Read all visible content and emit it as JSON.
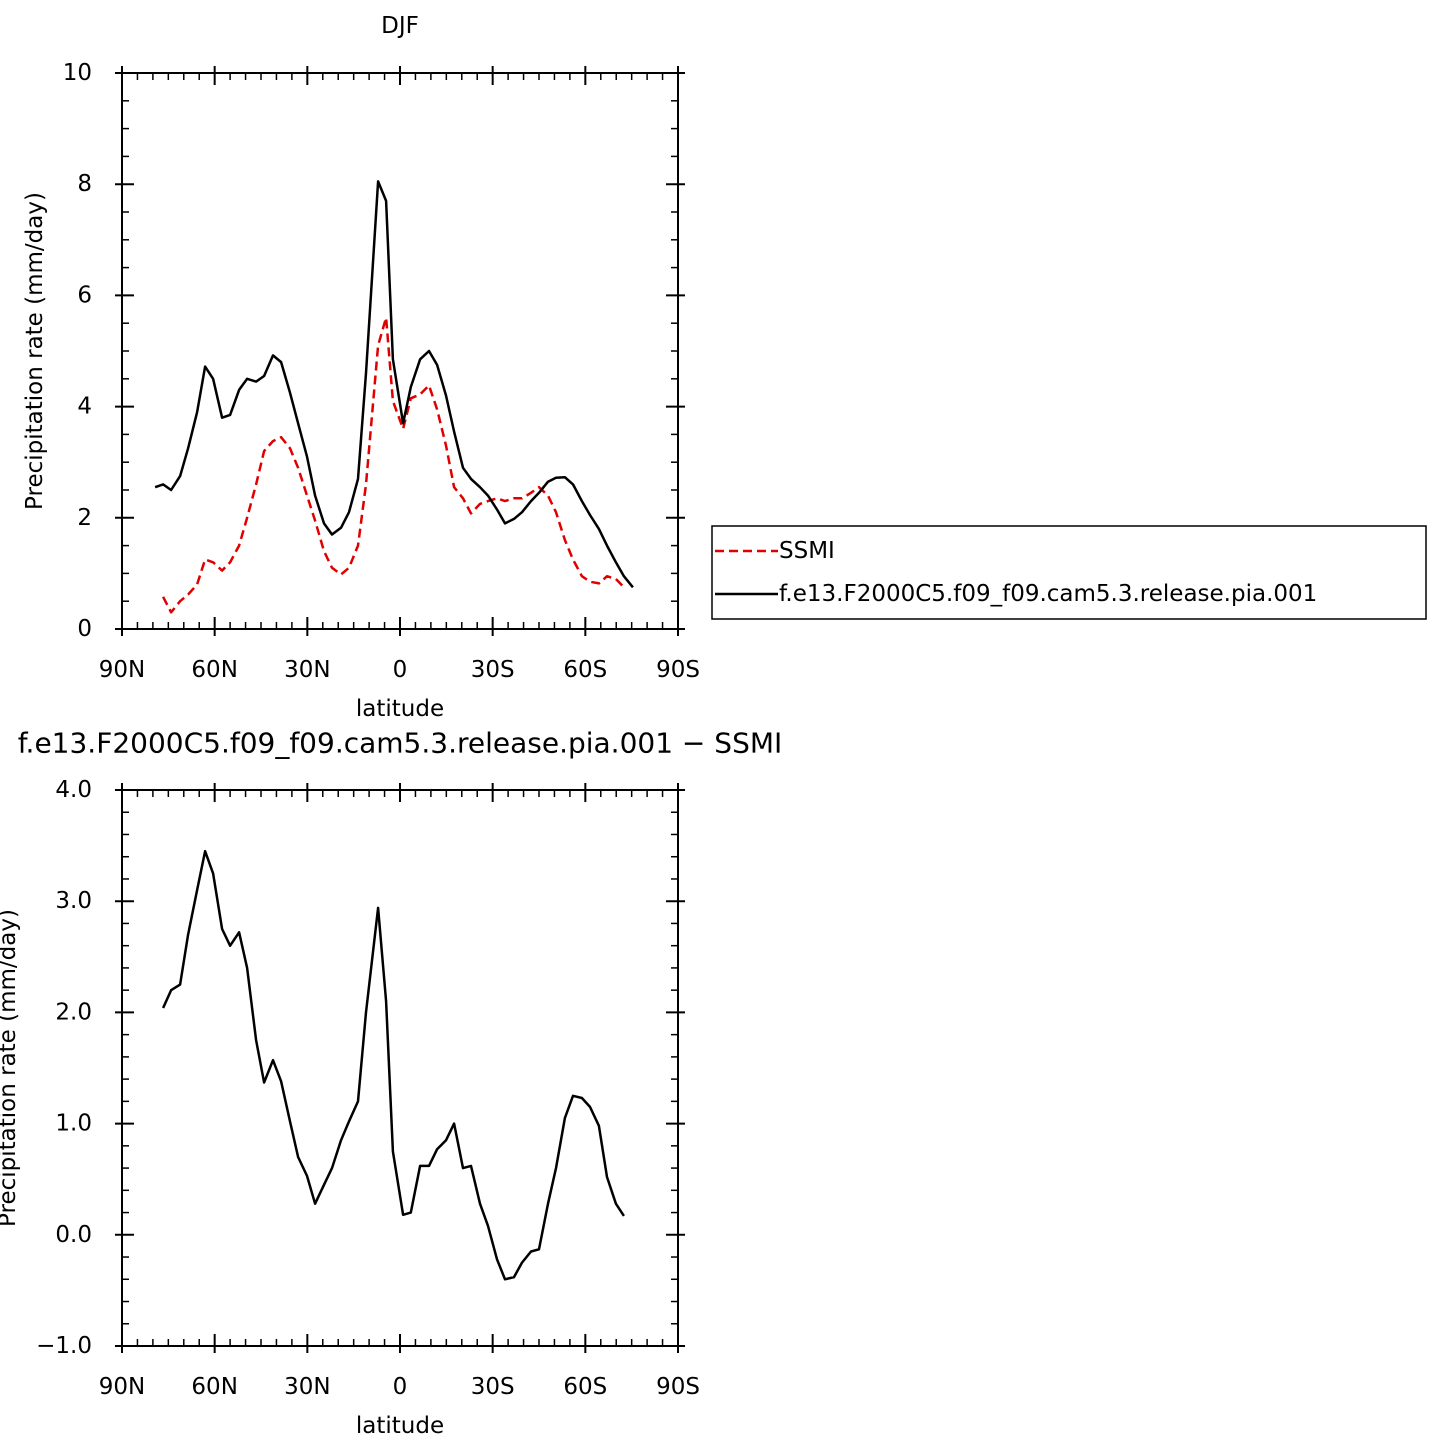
{
  "chart_data": [
    {
      "type": "line",
      "title": "DJF",
      "xlabel": "latitude",
      "ylabel": "Precipitation rate (mm/day)",
      "x": [
        79.3,
        76.7,
        74.1,
        71.2,
        68.6,
        65.7,
        63.1,
        60.5,
        57.6,
        55.0,
        52.1,
        49.5,
        46.6,
        44.0,
        41.1,
        38.5,
        35.6,
        33.0,
        30.1,
        27.5,
        24.6,
        22.0,
        19.1,
        16.5,
        13.6,
        11.0,
        7.1,
        4.5,
        2.3,
        -1.0,
        -3.5,
        -6.5,
        -9.4,
        -12.0,
        -14.9,
        -17.5,
        -20.4,
        -23.0,
        -25.9,
        -28.5,
        -31.4,
        -34.0,
        -36.9,
        -39.5,
        -42.4,
        -45.0,
        -47.9,
        -50.5,
        -53.4,
        -56.0,
        -58.9,
        -61.5,
        -64.4,
        -67.0,
        -69.9,
        -72.5,
        -75.4
      ],
      "series": [
        {
          "name": "SSMI",
          "color": "#e00000",
          "dashed": true,
          "values": [
            null,
            0.58,
            0.3,
            0.5,
            0.62,
            0.8,
            1.25,
            1.2,
            1.05,
            1.2,
            1.5,
            2.0,
            2.6,
            3.2,
            3.38,
            3.45,
            3.25,
            2.9,
            2.4,
            1.95,
            1.4,
            1.1,
            0.98,
            1.1,
            1.5,
            2.6,
            5.1,
            5.6,
            4.1,
            3.6,
            4.15,
            4.22,
            4.38,
            3.95,
            3.3,
            2.55,
            2.35,
            2.08,
            2.25,
            2.3,
            2.35,
            2.3,
            2.35,
            2.35,
            2.45,
            2.55,
            2.4,
            2.1,
            1.6,
            1.25,
            0.95,
            0.85,
            0.82,
            0.95,
            0.9,
            0.75,
            null
          ]
        },
        {
          "name": "f.e13.F2000C5.f09_f09.cam5.3.release.pia.001",
          "color": "#000000",
          "dashed": false,
          "values": [
            2.55,
            2.6,
            2.5,
            2.75,
            3.25,
            3.9,
            4.72,
            4.5,
            3.8,
            3.85,
            4.3,
            4.5,
            4.45,
            4.55,
            4.92,
            4.8,
            4.25,
            3.7,
            3.1,
            2.4,
            1.9,
            1.7,
            1.82,
            2.1,
            2.7,
            4.6,
            8.05,
            7.7,
            4.85,
            3.7,
            4.35,
            4.85,
            5.0,
            4.75,
            4.2,
            3.55,
            2.9,
            2.7,
            2.55,
            2.4,
            2.15,
            1.9,
            1.98,
            2.1,
            2.3,
            2.45,
            2.65,
            2.72,
            2.73,
            2.6,
            2.3,
            2.05,
            1.8,
            1.5,
            1.2,
            0.95,
            0.75
          ]
        }
      ],
      "xlim": [
        90,
        -90
      ],
      "xticks": [
        {
          "value": 90,
          "label": "90N"
        },
        {
          "value": 60,
          "label": "60N"
        },
        {
          "value": 30,
          "label": "30N"
        },
        0,
        {
          "value": -30,
          "label": "30S"
        },
        {
          "value": -60,
          "label": "60S"
        },
        {
          "value": -90,
          "label": "90S"
        }
      ],
      "ylim": [
        0,
        10
      ],
      "yticks": [
        0,
        2,
        4,
        6,
        8,
        10
      ],
      "legend": "right"
    },
    {
      "type": "line",
      "title": "f.e13.F2000C5.f09_f09.cam5.3.release.pia.001 − SSMI",
      "xlabel": "latitude",
      "ylabel": "Precipitation rate (mm/day)",
      "x": [
        79.3,
        76.7,
        74.1,
        71.2,
        68.6,
        65.7,
        63.1,
        60.5,
        57.6,
        55.0,
        52.1,
        49.5,
        46.6,
        44.0,
        41.1,
        38.5,
        35.6,
        33.0,
        30.1,
        27.5,
        24.6,
        22.0,
        19.1,
        16.5,
        13.6,
        11.0,
        7.1,
        4.5,
        2.3,
        -1.0,
        -3.5,
        -6.5,
        -9.4,
        -12.0,
        -14.9,
        -17.5,
        -20.4,
        -23.0,
        -25.9,
        -28.5,
        -31.4,
        -34.0,
        -36.9,
        -39.5,
        -42.4,
        -45.0,
        -47.9,
        -50.5,
        -53.4,
        -56.0,
        -58.9,
        -61.5,
        -64.4,
        -67.0,
        -69.9,
        -72.5,
        -75.4
      ],
      "values": [
        null,
        2.04,
        2.2,
        2.25,
        2.7,
        3.1,
        3.45,
        3.25,
        2.75,
        2.6,
        2.72,
        2.4,
        1.75,
        1.37,
        1.57,
        1.38,
        1.02,
        0.7,
        0.53,
        0.28,
        0.45,
        0.6,
        0.85,
        1.02,
        1.2,
        2.0,
        2.94,
        2.1,
        0.75,
        0.18,
        0.2,
        0.62,
        0.62,
        0.77,
        0.85,
        1.0,
        0.6,
        0.62,
        0.28,
        0.08,
        -0.22,
        -0.4,
        -0.38,
        -0.25,
        -0.15,
        -0.13,
        0.28,
        0.6,
        1.05,
        1.25,
        1.23,
        1.15,
        0.98,
        0.52,
        0.28,
        0.17,
        null
      ],
      "color": "#000000",
      "xlim": [
        90,
        -90
      ],
      "xticks": [
        {
          "value": 90,
          "label": "90N"
        },
        {
          "value": 60,
          "label": "60N"
        },
        {
          "value": 30,
          "label": "30N"
        },
        0,
        {
          "value": -30,
          "label": "30S"
        },
        {
          "value": -60,
          "label": "60S"
        },
        {
          "value": -90,
          "label": "90S"
        }
      ],
      "ylim": [
        -1,
        4
      ],
      "yticks": [
        {
          "value": -1,
          "label": "−1.0"
        },
        {
          "value": 0,
          "label": "0.0"
        },
        {
          "value": 1,
          "label": "1.0"
        },
        {
          "value": 2,
          "label": "2.0"
        },
        {
          "value": 3,
          "label": "3.0"
        },
        {
          "value": 4,
          "label": "4.0"
        }
      ]
    }
  ]
}
